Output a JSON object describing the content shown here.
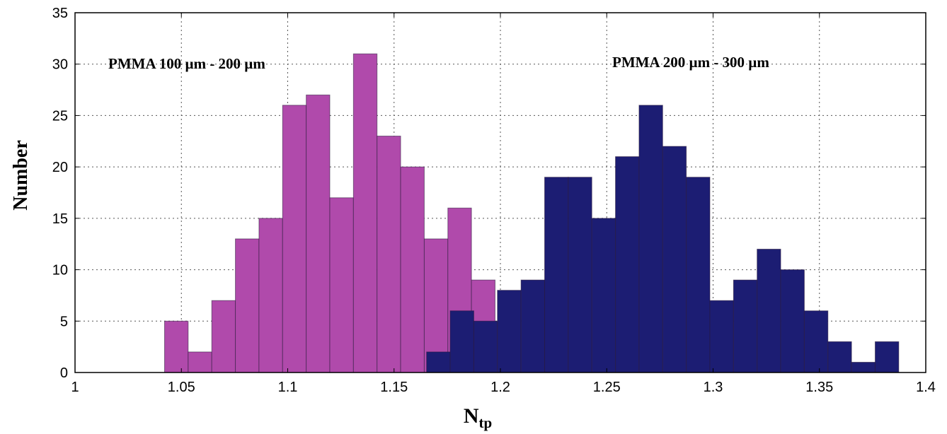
{
  "chart_data": {
    "type": "bar",
    "xlabel": "N",
    "xlabel_subscript": "tp",
    "ylabel": "Number",
    "xlim": [
      1,
      1.4
    ],
    "ylim": [
      0,
      35
    ],
    "x_ticks": [
      "1",
      "1.05",
      "1.1",
      "1.15",
      "1.2",
      "1.25",
      "1.3",
      "1.35",
      "1.4"
    ],
    "y_ticks": [
      "0",
      "5",
      "10",
      "15",
      "20",
      "25",
      "30",
      "35"
    ],
    "grid": true,
    "bin_width": 0.0111,
    "series": [
      {
        "name": "PMMA 100 µm - 200 µm",
        "color": "#b04aab",
        "bin_start": 1.0421,
        "values": [
          5,
          2,
          7,
          13,
          15,
          26,
          27,
          17,
          31,
          23,
          20,
          13,
          16,
          9
        ]
      },
      {
        "name": "PMMA 200 µm - 300 µm",
        "color": "#1c1d73",
        "bin_start": 1.1653,
        "values": [
          2,
          6,
          5,
          8,
          9,
          19,
          19,
          15,
          21,
          26,
          22,
          19,
          7,
          9,
          12,
          10,
          6,
          3,
          1,
          3
        ]
      }
    ],
    "annotations": [
      "PMMA 100 µm - 200 µm",
      "PMMA 200 µm - 300 µm"
    ]
  }
}
